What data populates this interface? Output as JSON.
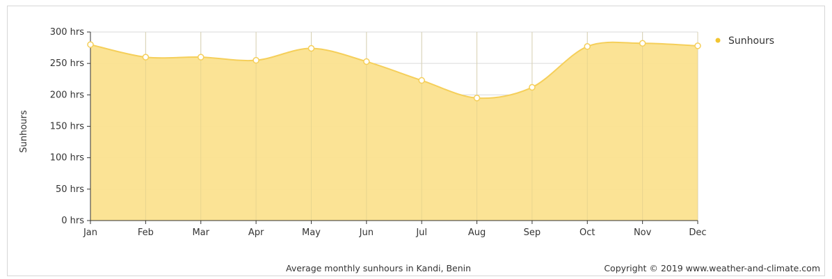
{
  "chart_data": {
    "type": "area",
    "categories": [
      "Jan",
      "Feb",
      "Mar",
      "Apr",
      "May",
      "Jun",
      "Jul",
      "Aug",
      "Sep",
      "Oct",
      "Nov",
      "Dec"
    ],
    "series": [
      {
        "name": "Sunhours",
        "values": [
          280,
          260,
          260,
          255,
          274,
          253,
          223,
          195,
          212,
          277,
          282,
          278
        ]
      }
    ],
    "ylabel": "Sunhours",
    "ylim": [
      0,
      300
    ],
    "yticks": [
      0,
      50,
      100,
      150,
      200,
      250,
      300
    ],
    "ytick_labels": [
      "0 hrs",
      "50 hrs",
      "100 hrs",
      "150 hrs",
      "200 hrs",
      "250 hrs",
      "300 hrs"
    ],
    "grid": true,
    "legend_position": "top-right",
    "caption": "Average monthly sunhours in Kandi, Benin",
    "copyright": "Copyright © 2019 www.weather-and-climate.com",
    "colors": {
      "fill": "#fbe28f",
      "line": "#f5cf5a",
      "marker_fill": "#ffffff",
      "legend_marker": "#f2c531",
      "grid": "#d9d9d9"
    }
  }
}
